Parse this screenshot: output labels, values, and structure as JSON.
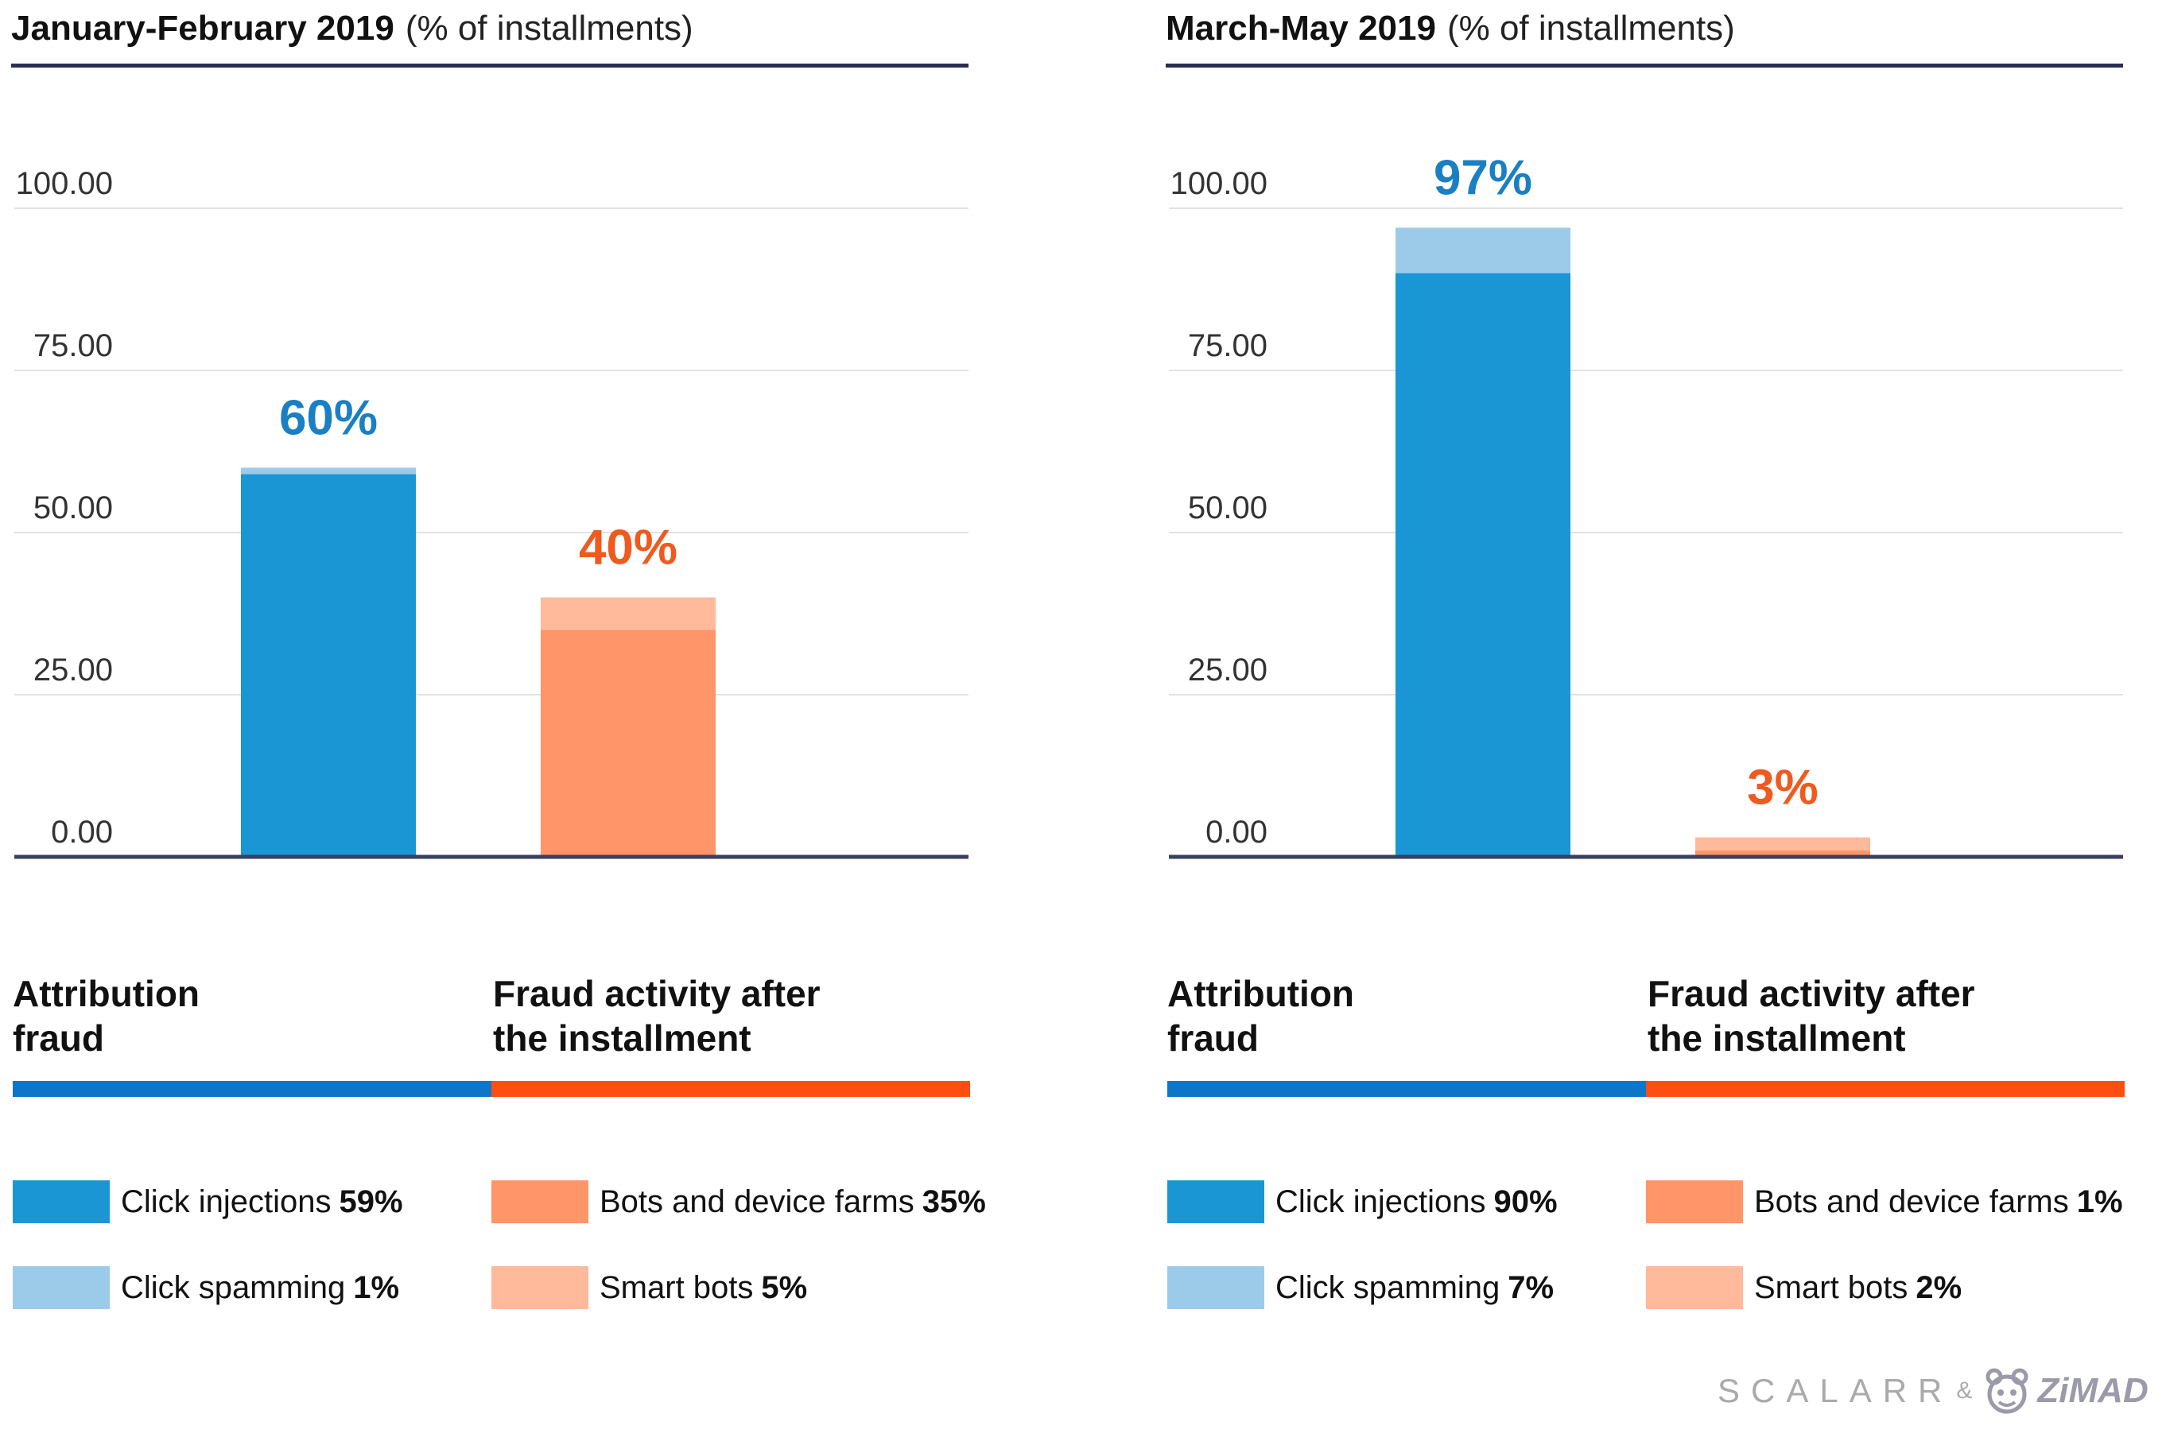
{
  "credit": {
    "brand": "SCALARR",
    "amp": "&",
    "partner": "ZiMAD",
    "logo_icon": "zimad-mascot-icon"
  },
  "colors": {
    "blue_dark": "#1a96d4",
    "blue_light": "#9ccbea",
    "orange_dark": "#ff9568",
    "orange_light": "#ffb99b",
    "blue_label": "#1a7fc3",
    "orange_label": "#ef5a1f",
    "group_blue": "#0d76c9",
    "group_orange": "#ff4e12",
    "axis": "#3a3f5f",
    "grid": "#e2e2e2",
    "title_rule": "#2a2f55"
  },
  "chart_data": [
    {
      "type": "bar",
      "stacked": true,
      "title": "January-February 2019",
      "subtitle": "(% of installments)",
      "ylim": [
        0,
        100
      ],
      "yticks": [
        "0.00",
        "25.00",
        "50.00",
        "75.00",
        "100.00"
      ],
      "grid": true,
      "categories": [
        "Attribution fraud",
        "Fraud activity after the installment"
      ],
      "category_labels": [
        "Attribution\nfraud",
        "Fraud activity after\nthe installment"
      ],
      "totals": [
        "60%",
        "40%"
      ],
      "series": [
        {
          "name": "Click injections",
          "category": 0,
          "value": 59,
          "label": "59%",
          "color": "#1a96d4"
        },
        {
          "name": "Click spamming",
          "category": 0,
          "value": 1,
          "label": "1%",
          "color": "#9ccbea"
        },
        {
          "name": "Bots and device farms",
          "category": 1,
          "value": 35,
          "label": "35%",
          "color": "#ff9568"
        },
        {
          "name": "Smart bots",
          "category": 1,
          "value": 5,
          "label": "5%",
          "color": "#ffb99b"
        }
      ]
    },
    {
      "type": "bar",
      "stacked": true,
      "title": "March-May 2019",
      "subtitle": "(% of installments)",
      "ylim": [
        0,
        100
      ],
      "yticks": [
        "0.00",
        "25.00",
        "50.00",
        "75.00",
        "100.00"
      ],
      "grid": true,
      "categories": [
        "Attribution fraud",
        "Fraud activity after the installment"
      ],
      "category_labels": [
        "Attribution\nfraud",
        "Fraud activity after\nthe installment"
      ],
      "totals": [
        "97%",
        "3%"
      ],
      "series": [
        {
          "name": "Click injections",
          "category": 0,
          "value": 90,
          "label": "90%",
          "color": "#1a96d4"
        },
        {
          "name": "Click spamming",
          "category": 0,
          "value": 7,
          "label": "7%",
          "color": "#9ccbea"
        },
        {
          "name": "Bots and device farms",
          "category": 1,
          "value": 1,
          "label": "1%",
          "color": "#ff9568"
        },
        {
          "name": "Smart bots",
          "category": 1,
          "value": 2,
          "label": "2%",
          "color": "#ffb99b"
        }
      ]
    }
  ]
}
